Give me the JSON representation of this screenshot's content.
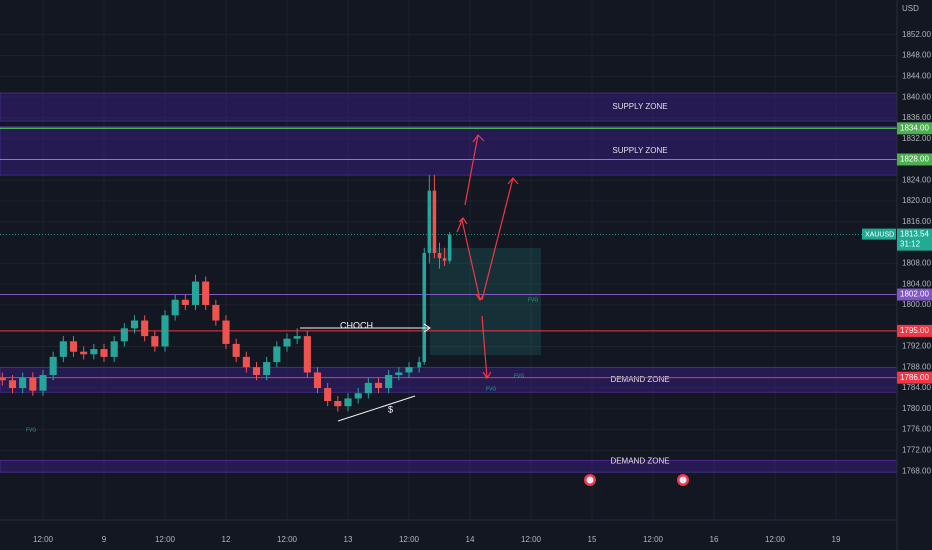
{
  "chart_data": {
    "type": "candlestick",
    "currency": "USD",
    "x": [
      -8,
      -6,
      -4,
      -2,
      0,
      2,
      4,
      6,
      8,
      10,
      12,
      14,
      16,
      18,
      20,
      22,
      24,
      26,
      28,
      30,
      32,
      34,
      36,
      38,
      40,
      42,
      44,
      46,
      48,
      50,
      52,
      54,
      56,
      58,
      60,
      62,
      64,
      66,
      68,
      70,
      72,
      74,
      75,
      76,
      77,
      78,
      79,
      80
    ],
    "open": [
      1786,
      1785.5,
      1784,
      1786,
      1783.5,
      1786.5,
      1790,
      1793,
      1791,
      1790.5,
      1791.5,
      1790,
      1793,
      1795.5,
      1797,
      1794,
      1792,
      1798,
      1801,
      1800,
      1804.5,
      1800,
      1797,
      1792.5,
      1790,
      1788,
      1786.5,
      1789,
      1792,
      1793.5,
      1794,
      1787,
      1784,
      1781.5,
      1780.5,
      1782,
      1783,
      1785,
      1784,
      1786.5,
      1787,
      1788,
      1789,
      1810,
      1822,
      1810,
      1809,
      1808.5
    ],
    "high": [
      1787,
      1786.5,
      1787,
      1787,
      1787.5,
      1791,
      1794,
      1794,
      1792,
      1792.5,
      1792.5,
      1794,
      1796.5,
      1798,
      1798,
      1795,
      1799,
      1802,
      1802,
      1805.8,
      1805.5,
      1801,
      1798,
      1793.5,
      1791,
      1789,
      1790,
      1793,
      1794.5,
      1795.5,
      1795,
      1788,
      1785,
      1782.5,
      1783,
      1784,
      1786,
      1786,
      1787.5,
      1788,
      1789,
      1790,
      1811,
      1825,
      1825,
      1812,
      1811,
      1814
    ],
    "low": [
      1784.5,
      1783,
      1783,
      1782.5,
      1782.5,
      1785.5,
      1789,
      1790,
      1789.5,
      1789.5,
      1789,
      1789,
      1792,
      1794.5,
      1793,
      1791,
      1791,
      1797,
      1799,
      1799,
      1799,
      1796,
      1791.5,
      1789,
      1787,
      1785.5,
      1785.5,
      1788,
      1791,
      1792.5,
      1786,
      1783,
      1780.5,
      1779.5,
      1779.5,
      1781,
      1782,
      1783,
      1783,
      1785.5,
      1786,
      1787,
      1788.5,
      1808,
      1809,
      1807,
      1807.5,
      1808
    ],
    "close": [
      1785.5,
      1784,
      1786,
      1783.5,
      1786.5,
      1790,
      1793,
      1791,
      1790.5,
      1791.5,
      1790,
      1793,
      1795.5,
      1797,
      1794,
      1792,
      1798,
      1801,
      1800,
      1804.5,
      1800,
      1797,
      1792.5,
      1790,
      1788,
      1786.5,
      1789,
      1792,
      1793.5,
      1794,
      1787,
      1784,
      1781.5,
      1780.5,
      1782,
      1783,
      1785,
      1784,
      1786.5,
      1787,
      1788,
      1789,
      1810,
      1822,
      1810,
      1809,
      1808.5,
      1813.54
    ],
    "up_color": "#26a69a",
    "down_color": "#ef5350",
    "xlim": [
      -8.46,
      168
    ],
    "xticks": [
      {
        "value": 0,
        "label": "12:00"
      },
      {
        "value": 12,
        "label": "9"
      },
      {
        "value": 24,
        "label": "12:00"
      },
      {
        "value": 36,
        "label": "12"
      },
      {
        "value": 48,
        "label": "12:00"
      },
      {
        "value": 60,
        "label": "13"
      },
      {
        "value": 72,
        "label": "12:00"
      },
      {
        "value": 84,
        "label": "14"
      },
      {
        "value": 96,
        "label": "12:00"
      },
      {
        "value": 108,
        "label": "15"
      },
      {
        "value": 120,
        "label": "12:00"
      },
      {
        "value": 132,
        "label": "16"
      },
      {
        "value": 144,
        "label": "12:00"
      },
      {
        "value": 156,
        "label": "19"
      }
    ],
    "ylim": [
      1758.6,
      1858.7
    ],
    "yticks": [
      {
        "value": 1852,
        "label": "1852.00"
      },
      {
        "value": 1848,
        "label": "1848.00"
      },
      {
        "value": 1844,
        "label": "1844.00"
      },
      {
        "value": 1840,
        "label": "1840.00"
      },
      {
        "value": 1836,
        "label": "1836.00"
      },
      {
        "value": 1832,
        "label": "1832.00"
      },
      {
        "value": 1824,
        "label": "1824.00"
      },
      {
        "value": 1820,
        "label": "1820.00"
      },
      {
        "value": 1816,
        "label": "1816.00"
      },
      {
        "value": 1808,
        "label": "1808.00"
      },
      {
        "value": 1804,
        "label": "1804.00"
      },
      {
        "value": 1800,
        "label": "1800.00"
      },
      {
        "value": 1792,
        "label": "1792.00"
      },
      {
        "value": 1788,
        "label": "1788.00"
      },
      {
        "value": 1784,
        "label": "1784.00"
      },
      {
        "value": 1780,
        "label": "1780.00"
      },
      {
        "value": 1776,
        "label": "1776.00"
      },
      {
        "value": 1772,
        "label": "1772.00"
      },
      {
        "value": 1768,
        "label": "1768.00"
      }
    ],
    "grid": true,
    "levels": [
      {
        "value": 1834,
        "label": "1834.00",
        "color": "#4caf50"
      },
      {
        "value": 1828,
        "label": "1828.00",
        "color": "#4caf50"
      },
      {
        "value": 1802,
        "label": "1802.00",
        "color": "#7e57c2"
      },
      {
        "value": 1795,
        "label": "1795.00",
        "color": "#f23645"
      },
      {
        "value": 1786,
        "label": "1786.00",
        "color": "#f23645"
      }
    ],
    "symbol": {
      "name": "XAUUSD",
      "value": 1813.54,
      "countdown": "31:12",
      "color": "#22ab94"
    },
    "zones": [
      {
        "label": "SUPPLY ZONE",
        "low": 1835.4,
        "high": 1840.8
      },
      {
        "label": "SUPPLY ZONE",
        "low": 1825,
        "high": 1834.3
      },
      {
        "label": "DEMAND ZONE",
        "low": 1783.2,
        "high": 1788
      },
      {
        "label": "DEMAND ZONE",
        "low": 1767.8,
        "high": 1770.1
      }
    ],
    "annotations": [
      "CHOCH",
      "$",
      "FVG",
      "FVG",
      "FVG",
      "FVG"
    ]
  }
}
